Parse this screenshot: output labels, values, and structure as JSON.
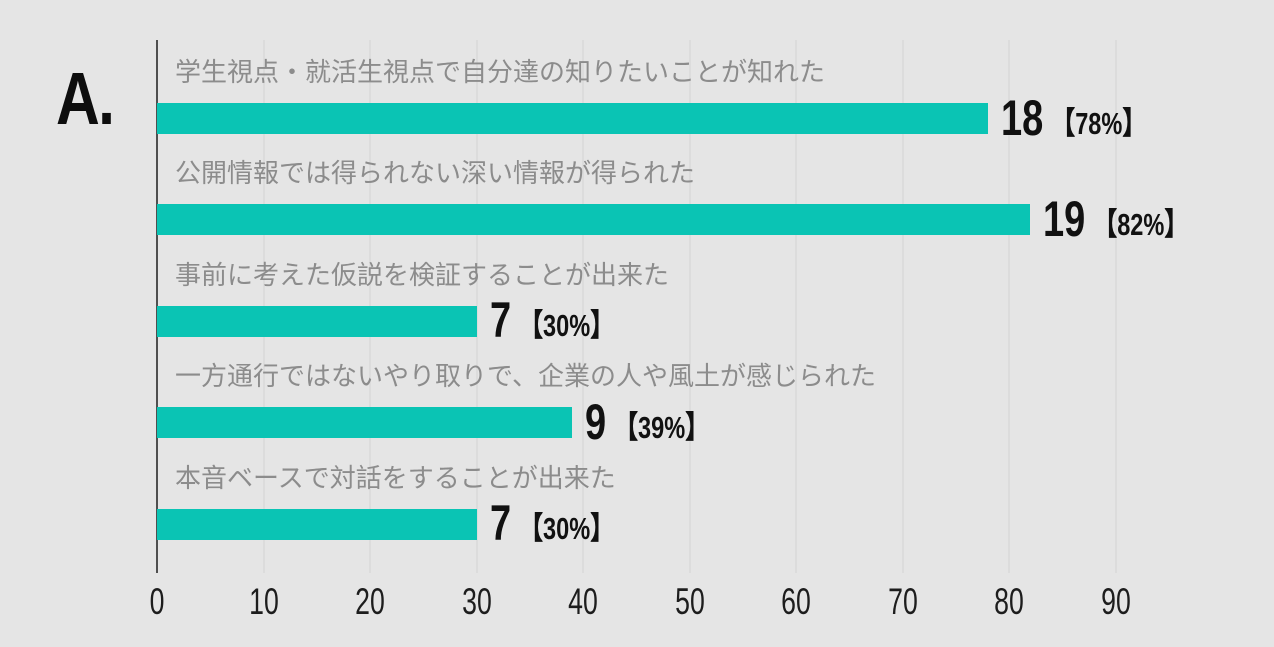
{
  "section_label": "A.",
  "colors": {
    "background": "#e5e5e5",
    "bar": "#0ac4b4",
    "gridline": "#dcdcdc",
    "axis_line": "#4f4f4f",
    "category_label_text": "#8c8c8c",
    "value_text": "#111111",
    "tick_text": "#1d1d1d"
  },
  "chart_data": {
    "type": "bar",
    "orientation": "horizontal",
    "title": "",
    "xlabel": "",
    "ylabel": "",
    "grid": "vertical gridlines on",
    "legend": "none",
    "bar_length_represents": "percent",
    "x_axis": {
      "ticks": [
        0,
        10,
        20,
        30,
        40,
        50,
        60,
        70,
        80,
        90
      ],
      "min": 0,
      "max": 90
    },
    "rows": [
      {
        "label": "学生視点・就活生視点で自分達の知りたいことが知れた",
        "count": 18,
        "percent": 78,
        "count_text": "18",
        "percent_text": "【78%】"
      },
      {
        "label": "公開情報では得られない深い情報が得られた",
        "count": 19,
        "percent": 82,
        "count_text": "19",
        "percent_text": "【82%】"
      },
      {
        "label": "事前に考えた仮説を検証することが出来た",
        "count": 7,
        "percent": 30,
        "count_text": "7",
        "percent_text": "【30%】"
      },
      {
        "label": "一方通行ではないやり取りで、企業の人や風土が感じられた",
        "count": 9,
        "percent": 39,
        "count_text": "9",
        "percent_text": "【39%】"
      },
      {
        "label": "本音ベースで対話をすることが出来た",
        "count": 7,
        "percent": 30,
        "count_text": "7",
        "percent_text": "【30%】"
      }
    ]
  }
}
